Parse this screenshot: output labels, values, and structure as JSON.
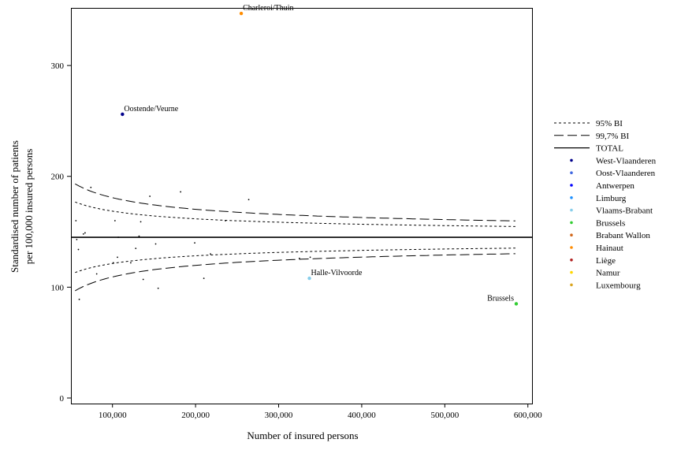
{
  "chart_data": {
    "type": "scatter",
    "xlabel": "Number of insured persons",
    "ylabel_lines": [
      "Standardised number of patients",
      "per 100,000 insured persons"
    ],
    "xlim": [
      50000,
      605000
    ],
    "ylim": [
      -5,
      352
    ],
    "x_ticks": [
      100000,
      200000,
      300000,
      400000,
      500000,
      600000
    ],
    "x_tick_labels": [
      "100,000",
      "200,000",
      "300,000",
      "400,000",
      "500,000",
      "600,000"
    ],
    "y_ticks": [
      0,
      100,
      200,
      300
    ],
    "y_tick_labels": [
      "0",
      "100",
      "200",
      "300"
    ],
    "total_rate": 145,
    "lines": [
      {
        "name": "95% BI",
        "style": "dotted",
        "z": 1.96
      },
      {
        "name": "99,7% BI",
        "style": "dashed",
        "z": 2.97
      },
      {
        "name": "TOTAL",
        "style": "solid"
      }
    ],
    "curve_x_range": [
      55000,
      585000
    ],
    "regions": [
      {
        "name": "West-Vlaanderen",
        "color": "#00008b"
      },
      {
        "name": "Oost-Vlaanderen",
        "color": "#4169e1"
      },
      {
        "name": "Antwerpen",
        "color": "#0000ff"
      },
      {
        "name": "Limburg",
        "color": "#1e90ff"
      },
      {
        "name": "Vlaams-Brabant",
        "color": "#87ceeb"
      },
      {
        "name": "Brussels",
        "color": "#32cd32"
      },
      {
        "name": "Brabant Wallon",
        "color": "#d2691e"
      },
      {
        "name": "Hainaut",
        "color": "#ff8c00"
      },
      {
        "name": "Liège",
        "color": "#b22222"
      },
      {
        "name": "Namur",
        "color": "#ffd700"
      },
      {
        "name": "Luxembourg",
        "color": "#daa520"
      }
    ],
    "points": [
      {
        "x": 255000,
        "y": 347,
        "region": "Hainaut",
        "label": "Charleroi/Thuin"
      },
      {
        "x": 112000,
        "y": 256,
        "region": "West-Vlaanderen",
        "label": "Oostende/Veurne"
      },
      {
        "x": 337000,
        "y": 108,
        "region": "Vlaams-Brabant",
        "label": "Halle-Vilvoorde"
      },
      {
        "x": 586000,
        "y": 85,
        "region": "Brussels",
        "label": "Brussels"
      },
      {
        "x": 56000,
        "y": 160,
        "region": "West-Vlaanderen",
        "label": ""
      },
      {
        "x": 57000,
        "y": 143,
        "region": "West-Vlaanderen",
        "label": ""
      },
      {
        "x": 59000,
        "y": 134,
        "region": "Oost-Vlaanderen",
        "label": ""
      },
      {
        "x": 60000,
        "y": 89,
        "region": "Limburg",
        "label": ""
      },
      {
        "x": 65000,
        "y": 148,
        "region": "Antwerpen",
        "label": ""
      },
      {
        "x": 67000,
        "y": 149,
        "region": "Oost-Vlaanderen",
        "label": ""
      },
      {
        "x": 74000,
        "y": 190,
        "region": "West-Vlaanderen",
        "label": ""
      },
      {
        "x": 81000,
        "y": 112,
        "region": "Limburg",
        "label": ""
      },
      {
        "x": 101000,
        "y": 122,
        "region": "Oost-Vlaanderen",
        "label": ""
      },
      {
        "x": 103000,
        "y": 160,
        "region": "Antwerpen",
        "label": ""
      },
      {
        "x": 106000,
        "y": 127,
        "region": "Limburg",
        "label": ""
      },
      {
        "x": 107000,
        "y": 145,
        "region": "Vlaams-Brabant",
        "label": ""
      },
      {
        "x": 122000,
        "y": 122,
        "region": "West-Vlaanderen",
        "label": ""
      },
      {
        "x": 128000,
        "y": 135,
        "region": "Oost-Vlaanderen",
        "label": ""
      },
      {
        "x": 132000,
        "y": 146,
        "region": "Antwerpen",
        "label": ""
      },
      {
        "x": 134000,
        "y": 159,
        "region": "West-Vlaanderen",
        "label": ""
      },
      {
        "x": 137000,
        "y": 107,
        "region": "Liège",
        "label": ""
      },
      {
        "x": 145000,
        "y": 182,
        "region": "Namur",
        "label": ""
      },
      {
        "x": 152000,
        "y": 139,
        "region": "Luxembourg",
        "label": ""
      },
      {
        "x": 155000,
        "y": 99,
        "region": "Liège",
        "label": ""
      },
      {
        "x": 182000,
        "y": 186,
        "region": "Hainaut",
        "label": ""
      },
      {
        "x": 199000,
        "y": 140,
        "region": "Liège",
        "label": ""
      },
      {
        "x": 210000,
        "y": 108,
        "region": "Oost-Vlaanderen",
        "label": ""
      },
      {
        "x": 218000,
        "y": 130,
        "region": "Antwerpen",
        "label": ""
      },
      {
        "x": 236000,
        "y": 160,
        "region": "Hainaut",
        "label": ""
      },
      {
        "x": 264000,
        "y": 179,
        "region": "Liège",
        "label": ""
      },
      {
        "x": 325000,
        "y": 126,
        "region": "Antwerpen",
        "label": ""
      },
      {
        "x": 338000,
        "y": 127,
        "region": "Oost-Vlaanderen",
        "label": ""
      }
    ]
  }
}
